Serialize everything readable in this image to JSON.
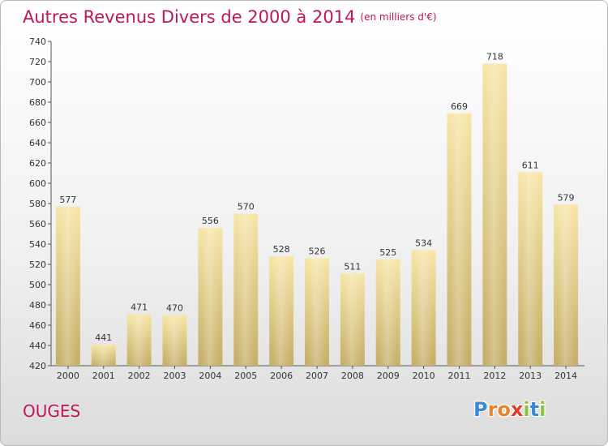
{
  "header": {
    "title": "Autres Revenus Divers de 2000 à 2014",
    "subtitle": "(en milliers d'€)"
  },
  "footer": {
    "commune": "OUGES",
    "brand_letters": [
      "P",
      "r",
      "o",
      "x",
      "i",
      "t",
      "i"
    ],
    "brand_colors": [
      "#3a8ad6",
      "#e5862d",
      "#e5862d",
      "#e23a2b",
      "#8ac43f",
      "#3a8ad6",
      "#8ac43f"
    ]
  },
  "colors": {
    "title": "#c0165a",
    "bar_light": "#f6e3a3",
    "bar_dark": "#c8b06a"
  },
  "chart_data": {
    "type": "bar",
    "title": "Autres Revenus Divers de 2000 à 2014",
    "subtitle": "(en milliers d'€)",
    "categories": [
      "2000",
      "2001",
      "2002",
      "2003",
      "2004",
      "2005",
      "2006",
      "2007",
      "2008",
      "2009",
      "2010",
      "2011",
      "2012",
      "2013",
      "2014"
    ],
    "values": [
      577,
      441,
      471,
      470,
      556,
      570,
      528,
      526,
      511,
      525,
      534,
      669,
      718,
      611,
      579
    ],
    "data_labels": [
      "577",
      "441",
      "471",
      "470",
      "556",
      "570",
      "528",
      "526",
      "511",
      "525",
      "534",
      "669",
      "718",
      "611",
      "579"
    ],
    "ylim": [
      420,
      740
    ],
    "yticks": [
      420,
      440,
      460,
      480,
      500,
      520,
      540,
      560,
      580,
      600,
      620,
      640,
      660,
      680,
      700,
      720,
      740
    ],
    "ytick_labels": [
      "420",
      "440",
      "460",
      "480",
      "500",
      "520",
      "540",
      "560",
      "580",
      "600",
      "620",
      "640",
      "660",
      "680",
      "700",
      "720",
      "740"
    ],
    "xlabel": "",
    "ylabel": "",
    "grid": false,
    "legend": "none"
  }
}
